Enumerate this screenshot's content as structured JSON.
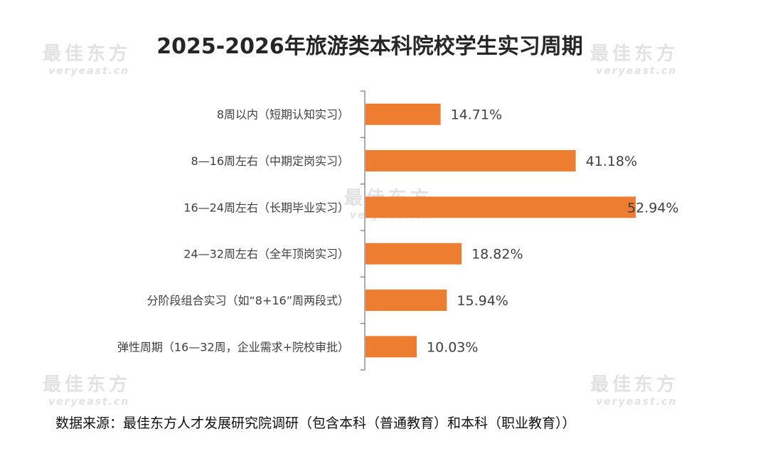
{
  "watermark": {
    "cn": "最佳东方",
    "en": "veryeast.cn"
  },
  "source_note": "数据来源：最佳东方人才发展研究院调研（包含本科（普通教育）和本科（职业教育））",
  "colors": {
    "bar": "#ED7D31",
    "axis": "#7f7f7f",
    "text": "#404040"
  },
  "chart_data": {
    "type": "bar",
    "orientation": "horizontal",
    "title": "2025-2026年旅游类本科院校学生实习周期",
    "categories": [
      "8周以内（短期认知实习）",
      "8—16周左右（中期定岗实习）",
      "16—24周左右（长期毕业实习）",
      "24—32周左右（全年顶岗实习）",
      "分阶段组合实习（如“8+16”周两段式）",
      "弹性周期（16—32周，企业需求+院校审批）"
    ],
    "values": [
      14.71,
      41.18,
      52.94,
      18.82,
      15.94,
      10.03
    ],
    "value_labels": [
      "14.71%",
      "41.18%",
      "52.94%",
      "18.82%",
      "15.94%",
      "10.03%"
    ],
    "unit": "%",
    "xlim": [
      0,
      60
    ],
    "grid": false,
    "legend": "none"
  }
}
